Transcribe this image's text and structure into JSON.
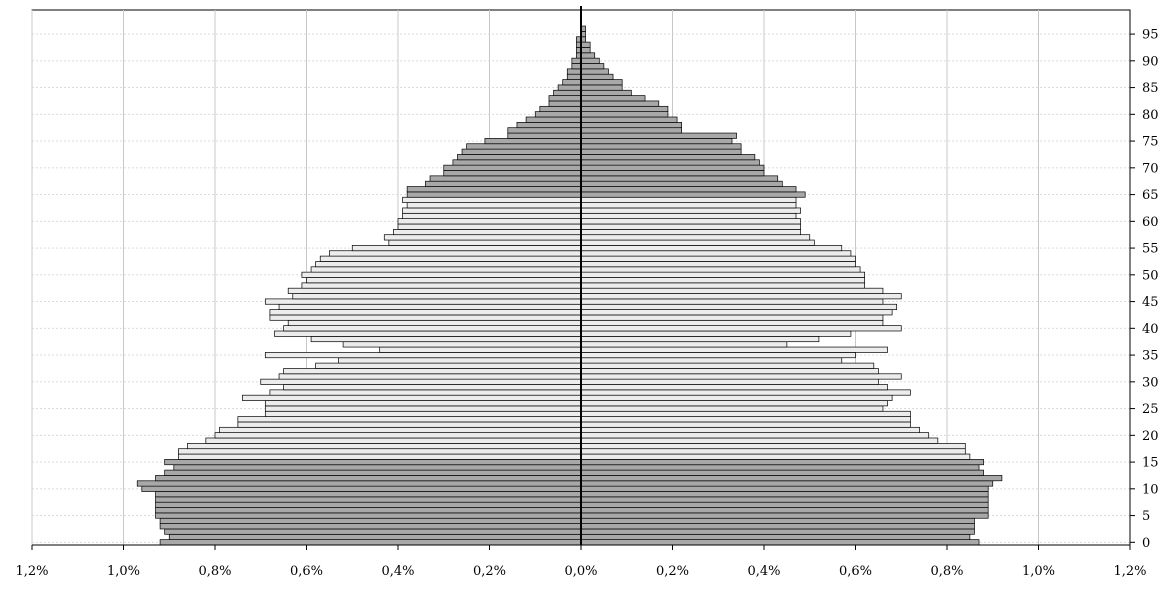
{
  "chart_data": {
    "type": "bar",
    "orientation": "horizontal-population-pyramid",
    "title": "",
    "xlabel": "",
    "ylabel": "",
    "x_tick_labels": [
      "1,2%",
      "1,0%",
      "0,8%",
      "0,6%",
      "0,4%",
      "0,2%",
      "0,0%",
      "0,2%",
      "0,4%",
      "0,6%",
      "0,8%",
      "1,0%",
      "1,2%"
    ],
    "x_tick_values": [
      -1.2,
      -1.0,
      -0.8,
      -0.6,
      -0.4,
      -0.2,
      0.0,
      0.2,
      0.4,
      0.6,
      0.8,
      1.0,
      1.2
    ],
    "y_tick_labels": [
      "0",
      "5",
      "10",
      "15",
      "20",
      "25",
      "30",
      "35",
      "40",
      "45",
      "50",
      "55",
      "60",
      "65",
      "70",
      "75",
      "80",
      "85",
      "90",
      "95"
    ],
    "y_tick_values": [
      0,
      5,
      10,
      15,
      20,
      25,
      30,
      35,
      40,
      45,
      50,
      55,
      60,
      65,
      70,
      75,
      80,
      85,
      90,
      95
    ],
    "xlim": [
      -1.2,
      1.2
    ],
    "ylim": [
      0,
      100
    ],
    "grid": true,
    "y_axis_side": "right",
    "colors": {
      "dark_fill": "#a8a8a8",
      "light_fill": "#ececec",
      "edge": "#000000",
      "grid": "#c8c8c8"
    },
    "ages": [
      0,
      1,
      2,
      3,
      4,
      5,
      6,
      7,
      8,
      9,
      10,
      11,
      12,
      13,
      14,
      15,
      16,
      17,
      18,
      19,
      20,
      21,
      22,
      23,
      24,
      25,
      26,
      27,
      28,
      29,
      30,
      31,
      32,
      33,
      34,
      35,
      36,
      37,
      38,
      39,
      40,
      41,
      42,
      43,
      44,
      45,
      46,
      47,
      48,
      49,
      50,
      51,
      52,
      53,
      54,
      55,
      56,
      57,
      58,
      59,
      60,
      61,
      62,
      63,
      64,
      65,
      66,
      67,
      68,
      69,
      70,
      71,
      72,
      73,
      74,
      75,
      76,
      77,
      78,
      79,
      80,
      81,
      82,
      83,
      84,
      85,
      86,
      87,
      88,
      89,
      90,
      91,
      92,
      93,
      94,
      95,
      96,
      97,
      98,
      99
    ],
    "series": [
      {
        "side": "left",
        "values": [
          0.92,
          0.9,
          0.91,
          0.92,
          0.92,
          0.93,
          0.93,
          0.93,
          0.93,
          0.93,
          0.96,
          0.97,
          0.93,
          0.91,
          0.89,
          0.91,
          0.88,
          0.88,
          0.86,
          0.82,
          0.8,
          0.79,
          0.75,
          0.75,
          0.69,
          0.69,
          0.69,
          0.74,
          0.68,
          0.65,
          0.7,
          0.66,
          0.65,
          0.58,
          0.53,
          0.69,
          0.44,
          0.52,
          0.59,
          0.67,
          0.65,
          0.64,
          0.68,
          0.68,
          0.66,
          0.69,
          0.63,
          0.64,
          0.61,
          0.6,
          0.61,
          0.59,
          0.58,
          0.57,
          0.55,
          0.5,
          0.42,
          0.43,
          0.41,
          0.4,
          0.4,
          0.39,
          0.39,
          0.38,
          0.39,
          0.38,
          0.38,
          0.34,
          0.33,
          0.3,
          0.3,
          0.28,
          0.27,
          0.26,
          0.25,
          0.21,
          0.16,
          0.16,
          0.14,
          0.12,
          0.1,
          0.09,
          0.07,
          0.07,
          0.06,
          0.05,
          0.04,
          0.03,
          0.03,
          0.02,
          0.02,
          0.01,
          0.01,
          0.01,
          0.01,
          0.0,
          0.0,
          0.0,
          0.0,
          0.0
        ],
        "shade": [
          "d",
          "d",
          "d",
          "d",
          "d",
          "d",
          "d",
          "d",
          "d",
          "d",
          "d",
          "d",
          "d",
          "d",
          "d",
          "d",
          "l",
          "l",
          "l",
          "l",
          "l",
          "l",
          "l",
          "l",
          "l",
          "l",
          "l",
          "l",
          "l",
          "l",
          "l",
          "l",
          "l",
          "l",
          "l",
          "l",
          "l",
          "l",
          "l",
          "l",
          "l",
          "l",
          "l",
          "l",
          "l",
          "l",
          "l",
          "l",
          "l",
          "l",
          "l",
          "l",
          "l",
          "l",
          "l",
          "l",
          "l",
          "l",
          "l",
          "l",
          "l",
          "l",
          "l",
          "l",
          "l",
          "d",
          "d",
          "d",
          "d",
          "d",
          "d",
          "d",
          "d",
          "d",
          "d",
          "d",
          "d",
          "d",
          "d",
          "d",
          "d",
          "d",
          "d",
          "d",
          "d",
          "d",
          "d",
          "d",
          "d",
          "d",
          "d",
          "d",
          "d",
          "d",
          "d",
          "d",
          "d",
          "d",
          "d",
          "d"
        ]
      },
      {
        "side": "right",
        "values": [
          0.87,
          0.85,
          0.86,
          0.86,
          0.86,
          0.89,
          0.89,
          0.89,
          0.89,
          0.89,
          0.89,
          0.9,
          0.92,
          0.88,
          0.87,
          0.88,
          0.85,
          0.84,
          0.84,
          0.78,
          0.76,
          0.74,
          0.72,
          0.72,
          0.72,
          0.66,
          0.67,
          0.68,
          0.72,
          0.67,
          0.65,
          0.7,
          0.65,
          0.64,
          0.57,
          0.6,
          0.67,
          0.45,
          0.52,
          0.59,
          0.7,
          0.66,
          0.66,
          0.68,
          0.69,
          0.66,
          0.7,
          0.66,
          0.62,
          0.62,
          0.62,
          0.61,
          0.6,
          0.6,
          0.59,
          0.57,
          0.51,
          0.5,
          0.48,
          0.48,
          0.48,
          0.47,
          0.48,
          0.47,
          0.47,
          0.49,
          0.47,
          0.44,
          0.43,
          0.4,
          0.4,
          0.39,
          0.38,
          0.35,
          0.35,
          0.33,
          0.34,
          0.22,
          0.22,
          0.21,
          0.19,
          0.19,
          0.17,
          0.14,
          0.11,
          0.09,
          0.09,
          0.07,
          0.06,
          0.05,
          0.04,
          0.03,
          0.02,
          0.02,
          0.01,
          0.01,
          0.01,
          0.0,
          0.0,
          0.0
        ],
        "shade": [
          "d",
          "d",
          "d",
          "d",
          "d",
          "d",
          "d",
          "d",
          "d",
          "d",
          "d",
          "d",
          "d",
          "d",
          "d",
          "d",
          "l",
          "l",
          "l",
          "l",
          "l",
          "l",
          "l",
          "l",
          "l",
          "l",
          "l",
          "l",
          "l",
          "l",
          "l",
          "l",
          "l",
          "l",
          "l",
          "l",
          "l",
          "l",
          "l",
          "l",
          "l",
          "l",
          "l",
          "l",
          "l",
          "l",
          "l",
          "l",
          "l",
          "l",
          "l",
          "l",
          "l",
          "l",
          "l",
          "l",
          "l",
          "l",
          "l",
          "l",
          "l",
          "l",
          "l",
          "l",
          "l",
          "d",
          "d",
          "d",
          "d",
          "d",
          "d",
          "d",
          "d",
          "d",
          "d",
          "d",
          "d",
          "d",
          "d",
          "d",
          "d",
          "d",
          "d",
          "d",
          "d",
          "d",
          "d",
          "d",
          "d",
          "d",
          "d",
          "d",
          "d",
          "d",
          "d",
          "d",
          "d",
          "d",
          "d",
          "d"
        ]
      }
    ]
  }
}
